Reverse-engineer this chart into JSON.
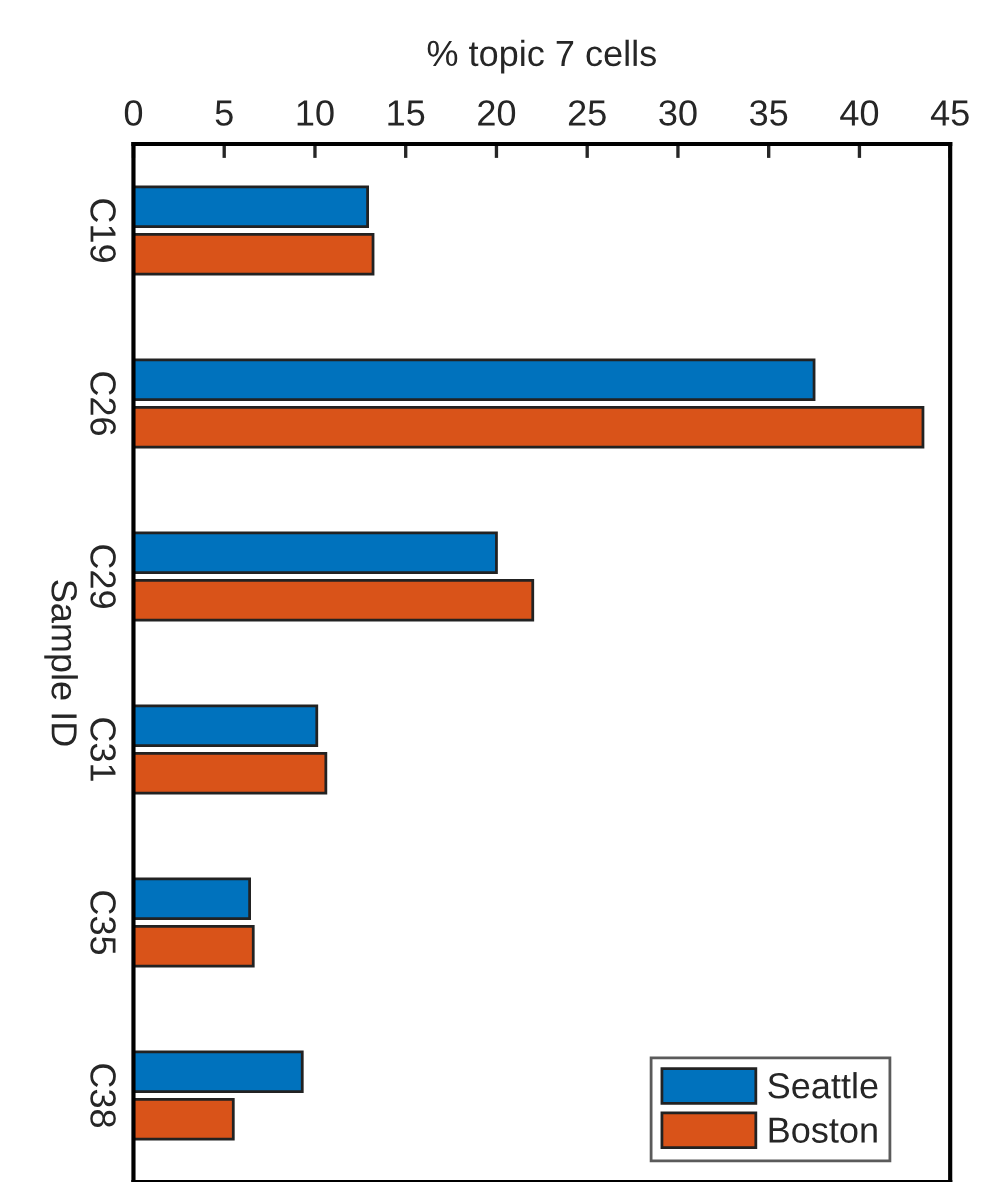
{
  "chart_data": {
    "type": "bar",
    "orientation": "horizontal",
    "xlabel": "% topic 7 cells",
    "ylabel": "Sample ID",
    "categories": [
      "C19",
      "C26",
      "C29",
      "C31",
      "C35",
      "C38"
    ],
    "series": [
      {
        "name": "Seattle",
        "color": "#0072bd",
        "values": [
          12.9,
          37.5,
          20.0,
          10.1,
          6.4,
          9.3
        ]
      },
      {
        "name": "Boston",
        "color": "#d95319",
        "values": [
          13.2,
          43.5,
          22.0,
          10.6,
          6.6,
          5.5
        ]
      }
    ],
    "xlim": [
      0,
      45
    ],
    "xticks": [
      0,
      5,
      10,
      15,
      20,
      25,
      30,
      35,
      40,
      45
    ],
    "grid": false,
    "legend": "bottom right"
  }
}
